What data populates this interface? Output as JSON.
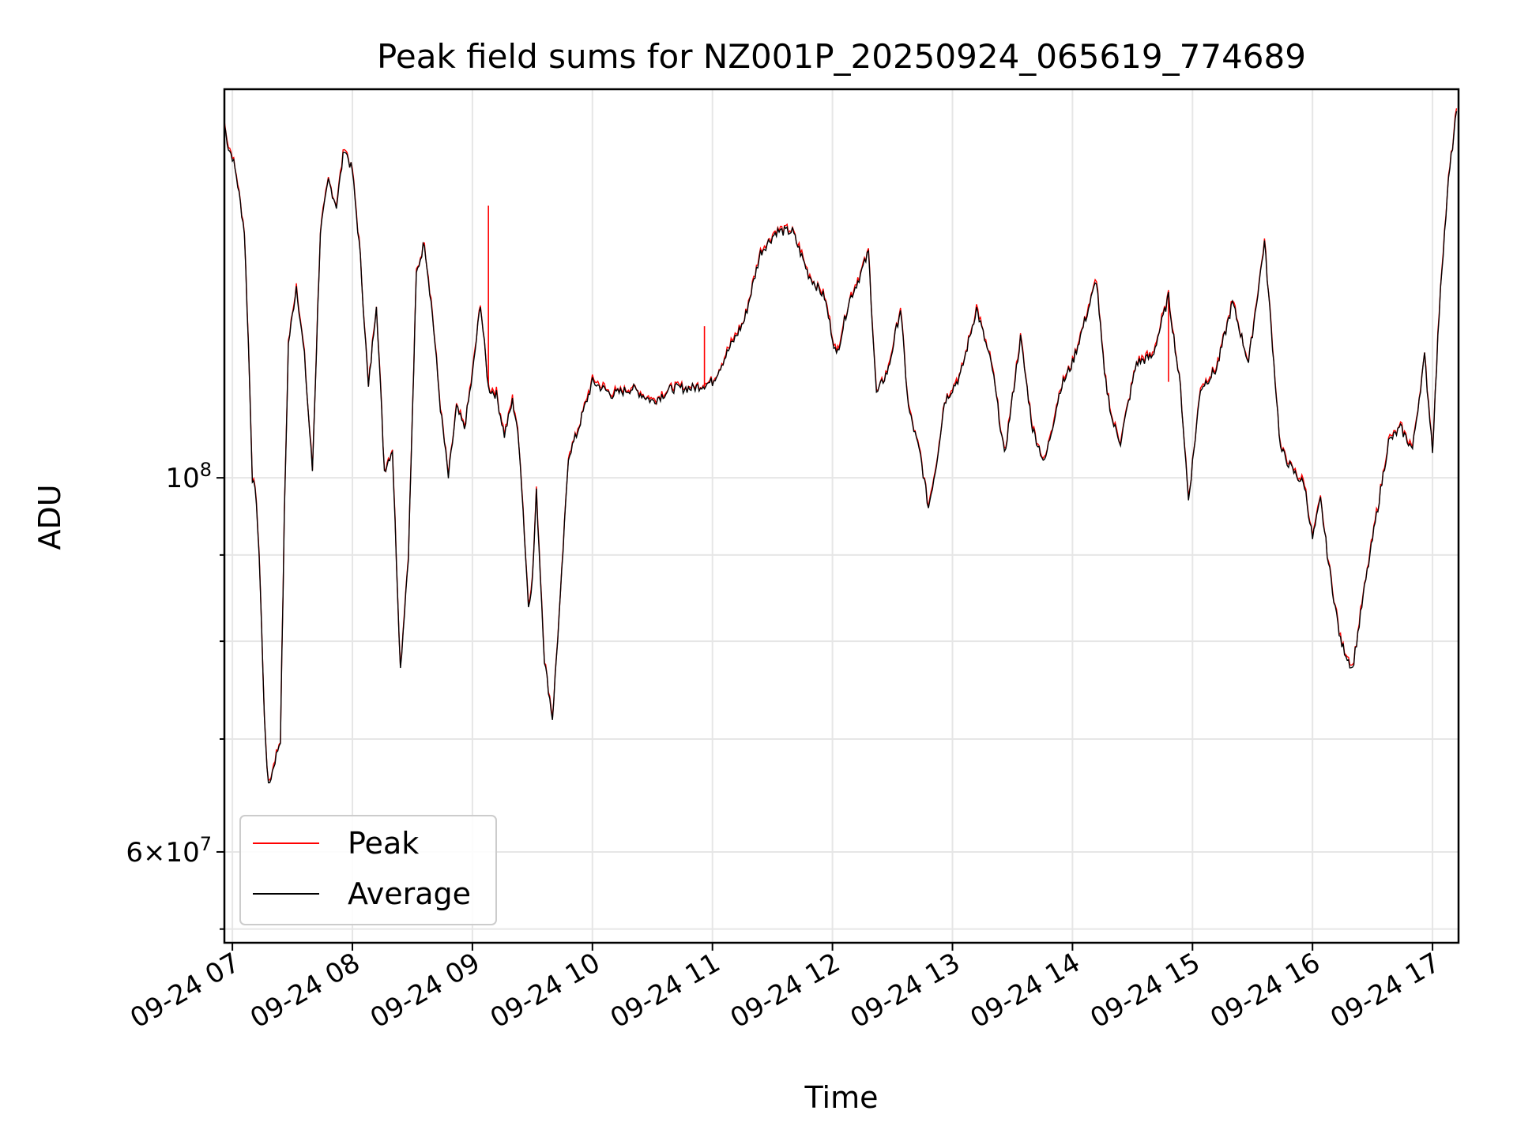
{
  "chart_data": {
    "type": "line",
    "title": "Peak field sums for NZ001P_20250924_065619_774689",
    "xlabel": "Time",
    "ylabel": "ADU",
    "y_scale": "log",
    "ylim": [
      53000000,
      170000000
    ],
    "xlim": [
      "09-24 06:56",
      "09-24 17:13"
    ],
    "x_ticks": [
      "09-24 07",
      "09-24 08",
      "09-24 09",
      "09-24 10",
      "09-24 11",
      "09-24 12",
      "09-24 13",
      "09-24 14",
      "09-24 15",
      "09-24 16",
      "09-24 17"
    ],
    "y_ticks_major": [
      {
        "value": 100000000,
        "label": "10^8"
      },
      {
        "value": 60000000,
        "label": "6×10^7"
      }
    ],
    "y_ticks_minor": [
      54000000,
      70000000,
      80000000,
      90000000,
      200000000
    ],
    "grid": true,
    "legend": {
      "placement": "lower-left"
    },
    "series": [
      {
        "name": "Average",
        "color": "#000000",
        "points": [
          [
            "06:56",
            162000000
          ],
          [
            "06:58",
            157000000
          ],
          [
            "07:00",
            155000000
          ],
          [
            "07:02",
            151000000
          ],
          [
            "07:06",
            140000000
          ],
          [
            "07:08",
            120000000
          ],
          [
            "07:10",
            100000000
          ],
          [
            "07:12",
            97000000
          ],
          [
            "07:14",
            86000000
          ],
          [
            "07:16",
            72000000
          ],
          [
            "07:18",
            65500000
          ],
          [
            "07:20",
            67000000
          ],
          [
            "07:24",
            70000000
          ],
          [
            "07:26",
            95000000
          ],
          [
            "07:28",
            120000000
          ],
          [
            "07:32",
            130000000
          ],
          [
            "07:36",
            118000000
          ],
          [
            "07:40",
            101000000
          ],
          [
            "07:44",
            140000000
          ],
          [
            "07:48",
            150000000
          ],
          [
            "07:52",
            145000000
          ],
          [
            "07:56",
            157000000
          ],
          [
            "08:00",
            152000000
          ],
          [
            "08:04",
            135000000
          ],
          [
            "08:08",
            113000000
          ],
          [
            "08:12",
            127000000
          ],
          [
            "08:16",
            101000000
          ],
          [
            "08:20",
            104000000
          ],
          [
            "08:24",
            77000000
          ],
          [
            "08:28",
            90000000
          ],
          [
            "08:32",
            132000000
          ],
          [
            "08:36",
            138000000
          ],
          [
            "08:40",
            125000000
          ],
          [
            "08:44",
            110000000
          ],
          [
            "08:48",
            100000000
          ],
          [
            "08:52",
            110000000
          ],
          [
            "08:56",
            107000000
          ],
          [
            "09:00",
            115000000
          ],
          [
            "09:04",
            127000000
          ],
          [
            "09:08",
            113000000
          ],
          [
            "09:12",
            112000000
          ],
          [
            "09:16",
            106000000
          ],
          [
            "09:20",
            111000000
          ],
          [
            "09:22",
            108000000
          ],
          [
            "09:24",
            102000000
          ],
          [
            "09:28",
            84000000
          ],
          [
            "09:30",
            87000000
          ],
          [
            "09:32",
            98000000
          ],
          [
            "09:36",
            78000000
          ],
          [
            "09:40",
            72000000
          ],
          [
            "09:44",
            85000000
          ],
          [
            "09:48",
            103000000
          ],
          [
            "09:52",
            106000000
          ],
          [
            "09:56",
            110000000
          ],
          [
            "10:00",
            114000000
          ],
          [
            "10:10",
            112000000
          ],
          [
            "10:20",
            113000000
          ],
          [
            "10:30",
            111000000
          ],
          [
            "10:40",
            113000000
          ],
          [
            "10:50",
            113000000
          ],
          [
            "11:00",
            114000000
          ],
          [
            "11:08",
            119000000
          ],
          [
            "11:16",
            124000000
          ],
          [
            "11:24",
            136000000
          ],
          [
            "11:32",
            140000000
          ],
          [
            "11:40",
            140000000
          ],
          [
            "11:48",
            132000000
          ],
          [
            "11:56",
            128000000
          ],
          [
            "12:02",
            118000000
          ],
          [
            "12:08",
            127000000
          ],
          [
            "12:14",
            132000000
          ],
          [
            "12:18",
            136000000
          ],
          [
            "12:22",
            112000000
          ],
          [
            "12:28",
            116000000
          ],
          [
            "12:34",
            126000000
          ],
          [
            "12:38",
            110000000
          ],
          [
            "12:44",
            103000000
          ],
          [
            "12:48",
            96000000
          ],
          [
            "12:52",
            102000000
          ],
          [
            "12:56",
            111000000
          ],
          [
            "13:04",
            115000000
          ],
          [
            "13:12",
            126000000
          ],
          [
            "13:20",
            116000000
          ],
          [
            "13:26",
            103000000
          ],
          [
            "13:34",
            121000000
          ],
          [
            "13:40",
            107000000
          ],
          [
            "13:46",
            102000000
          ],
          [
            "13:54",
            113000000
          ],
          [
            "14:00",
            117000000
          ],
          [
            "14:08",
            126000000
          ],
          [
            "14:12",
            131000000
          ],
          [
            "14:16",
            115000000
          ],
          [
            "14:20",
            108000000
          ],
          [
            "14:24",
            105000000
          ],
          [
            "14:32",
            117000000
          ],
          [
            "14:40",
            118000000
          ],
          [
            "14:48",
            128000000
          ],
          [
            "14:54",
            113000000
          ],
          [
            "14:58",
            97000000
          ],
          [
            "15:04",
            113000000
          ],
          [
            "15:12",
            116000000
          ],
          [
            "15:20",
            127000000
          ],
          [
            "15:28",
            117000000
          ],
          [
            "15:36",
            138000000
          ],
          [
            "15:44",
            104000000
          ],
          [
            "15:50",
            101000000
          ],
          [
            "15:56",
            99000000
          ],
          [
            "16:00",
            92000000
          ],
          [
            "16:04",
            97000000
          ],
          [
            "16:08",
            89000000
          ],
          [
            "16:14",
            80000000
          ],
          [
            "16:20",
            77000000
          ],
          [
            "16:26",
            86000000
          ],
          [
            "16:32",
            95000000
          ],
          [
            "16:38",
            105000000
          ],
          [
            "16:44",
            107000000
          ],
          [
            "16:50",
            104000000
          ],
          [
            "16:56",
            118000000
          ],
          [
            "17:00",
            104000000
          ],
          [
            "17:04",
            130000000
          ],
          [
            "17:08",
            150000000
          ],
          [
            "17:12",
            165000000
          ]
        ]
      },
      {
        "name": "Peak",
        "color": "#ff0000",
        "spikes": [
          [
            "09:08",
            145000000
          ],
          [
            "10:56",
            123000000
          ],
          [
            "14:48",
            114000000
          ]
        ]
      }
    ]
  }
}
